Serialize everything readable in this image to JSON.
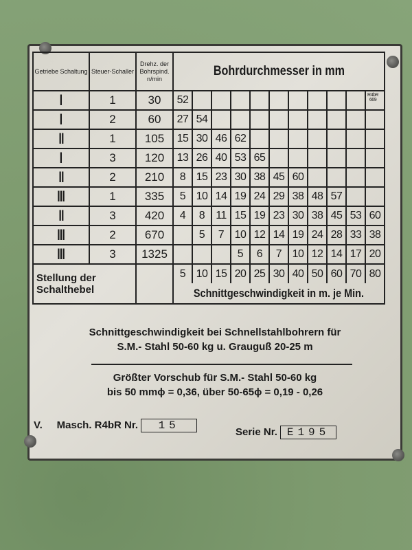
{
  "header": {
    "col_gear": "Getriebe Schaltung",
    "col_switch": "Steuer-Schaller",
    "col_rpm": "Drehz. der Bohrspind. n/min",
    "title": "Bohrdurchmesser in mm",
    "model_code": "R4bR 669"
  },
  "rows": [
    {
      "gear": "I",
      "switch": "1",
      "rpm": "30",
      "diameters": [
        "52"
      ]
    },
    {
      "gear": "I",
      "switch": "2",
      "rpm": "60",
      "diameters": [
        "27",
        "54"
      ]
    },
    {
      "gear": "II",
      "switch": "1",
      "rpm": "105",
      "diameters": [
        "15",
        "30",
        "46",
        "62"
      ]
    },
    {
      "gear": "I",
      "switch": "3",
      "rpm": "120",
      "diameters": [
        "13",
        "26",
        "40",
        "53",
        "65"
      ]
    },
    {
      "gear": "II",
      "switch": "2",
      "rpm": "210",
      "diameters": [
        "8",
        "15",
        "23",
        "30",
        "38",
        "45",
        "60"
      ]
    },
    {
      "gear": "III",
      "switch": "1",
      "rpm": "335",
      "diameters": [
        "5",
        "10",
        "14",
        "19",
        "24",
        "29",
        "38",
        "48",
        "57"
      ]
    },
    {
      "gear": "II",
      "switch": "3",
      "rpm": "420",
      "diameters": [
        "4",
        "8",
        "11",
        "15",
        "19",
        "23",
        "30",
        "38",
        "45",
        "53",
        "60"
      ]
    },
    {
      "gear": "III",
      "switch": "2",
      "rpm": "670",
      "diameters": [
        "",
        "5",
        "7",
        "10",
        "12",
        "14",
        "19",
        "24",
        "28",
        "33",
        "38"
      ]
    },
    {
      "gear": "III",
      "switch": "3",
      "rpm": "1325",
      "diameters": [
        "",
        "",
        "",
        "5",
        "6",
        "7",
        "10",
        "12",
        "14",
        "17",
        "20"
      ]
    }
  ],
  "footer_row": {
    "label": "Stellung der Schalthebel",
    "speeds": [
      "5",
      "10",
      "15",
      "20",
      "25",
      "30",
      "40",
      "50",
      "60",
      "70",
      "80"
    ],
    "speed_label": "Schnittgeschwindigkeit in m. je Min."
  },
  "notes": {
    "line1": "Schnittgeschwindigkeit bei Schnellstahlbohrern für",
    "line2": "S.M.- Stahl 50-60 kg u. Grauguß 20-25 m",
    "line3": "Größter Vorschub für S.M.- Stahl 50-60 kg",
    "line4": "bis 50 mmϕ = 0,36, über 50-65ϕ = 0,19 - 0,26"
  },
  "machine": {
    "prefix": "V.",
    "label": "Masch. R4bR Nr.",
    "number": "15",
    "series_label": "Serie Nr.",
    "series": "E195"
  },
  "colors": {
    "background": "#7d9a6e",
    "plate": "#dcdad2",
    "ink": "#1a1a1a"
  }
}
